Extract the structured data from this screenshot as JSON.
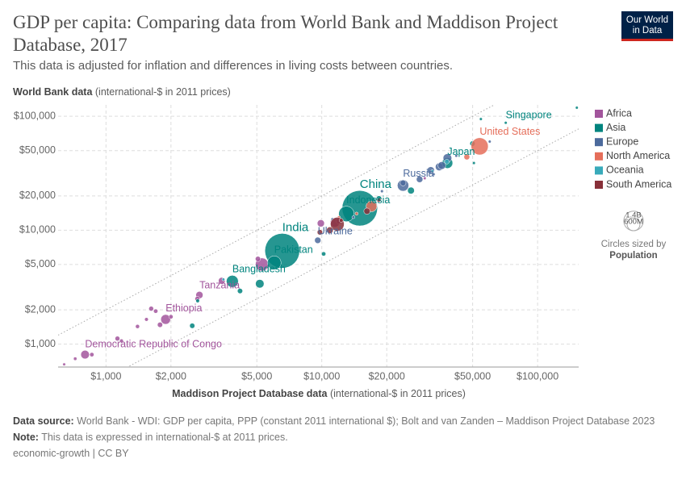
{
  "chart_data": {
    "type": "scatter",
    "title": "GDP per capita: Comparing data from World Bank and Maddison Project Database, 2017",
    "subtitle": "This data is adjusted for inflation and differences in living costs between countries.",
    "logo": [
      "Our World",
      "in Data"
    ],
    "x_label": {
      "name": "Maddison Project Database data",
      "unit": "(international-$ in 2011 prices)"
    },
    "y_label": {
      "name": "World Bank data",
      "unit": "(international-$ in 2011 prices)"
    },
    "log_x": true,
    "log_y": true,
    "grid": true,
    "xlim": [
      600,
      155000
    ],
    "ylim": [
      630,
      126000
    ],
    "xticks": [
      {
        "value": 1000,
        "label": "$1,000"
      },
      {
        "value": 2000,
        "label": "$2,000"
      },
      {
        "value": 5000,
        "label": "$5,000"
      },
      {
        "value": 10000,
        "label": "$10,000"
      },
      {
        "value": 20000,
        "label": "$20,000"
      },
      {
        "value": 50000,
        "label": "$50,000"
      },
      {
        "value": 100000,
        "label": "$100,000"
      }
    ],
    "yticks": [
      {
        "value": 1000,
        "label": "$1,000"
      },
      {
        "value": 2000,
        "label": "$2,000"
      },
      {
        "value": 5000,
        "label": "$5,000"
      },
      {
        "value": 10000,
        "label": "$10,000"
      },
      {
        "value": 20000,
        "label": "$20,000"
      },
      {
        "value": 50000,
        "label": "$50,000"
      },
      {
        "value": 100000,
        "label": "$100,000"
      }
    ],
    "reference_multipliers": [
      2,
      0.5
    ],
    "legend_position": "right",
    "series": [
      {
        "name": "Africa",
        "color": "#a2559c",
        "x": [
          1890,
          2710,
          800,
          5280,
          11500,
          9900,
          640,
          720,
          860,
          1130,
          1180,
          1400,
          1540,
          1620,
          1700,
          1780,
          2000,
          3440,
          5060,
          12000,
          30000,
          2650
        ],
        "values": [
          1650,
          2700,
          810,
          5000,
          11700,
          11500,
          665,
          745,
          810,
          1120,
          1070,
          1430,
          1650,
          2050,
          1950,
          1480,
          1740,
          3600,
          5600,
          12100,
          28600,
          2500
        ],
        "sizes": [
          105,
          57,
          81,
          191,
          97,
          57,
          5,
          12,
          20,
          25,
          15,
          18,
          15,
          25,
          20,
          30,
          20,
          50,
          30,
          40,
          2,
          26
        ],
        "labels": [
          "Ethiopia",
          "Tanzania",
          "Democratic Republic of Congo",
          null,
          null,
          null,
          null,
          null,
          null,
          null,
          null,
          null,
          null,
          null,
          null,
          null,
          null,
          null,
          null,
          null,
          null,
          null
        ]
      },
      {
        "name": "Asia",
        "color": "#00847e",
        "x": [
          15000,
          6560,
          13000,
          6020,
          3850,
          38200,
          71200,
          54600,
          152000,
          49900,
          50700,
          18400,
          10200,
          5160,
          4180,
          2510,
          2660,
          25900
        ],
        "values": [
          15600,
          6600,
          13900,
          5180,
          3560,
          38900,
          87700,
          94600,
          119000,
          57600,
          38900,
          19000,
          6200,
          3390,
          2930,
          1450,
          2400,
          22300
        ],
        "sizes": [
          1390,
          1340,
          264,
          207,
          160,
          127,
          5.7,
          3,
          2.7,
          30,
          4,
          32,
          20,
          80,
          30,
          30,
          15,
          51
        ],
        "labels": [
          "China",
          "India",
          "Indonesia",
          "Pakistan",
          "Bangladesh",
          "Japan",
          "Singapore",
          null,
          null,
          null,
          null,
          null,
          null,
          null,
          null,
          null,
          null,
          null
        ]
      },
      {
        "name": "Europe",
        "color": "#4c6a9c",
        "x": [
          23800,
          9580,
          38200,
          35000,
          36000,
          32000,
          28400,
          23800,
          60000,
          42000,
          11200,
          19000,
          14000,
          33000
        ],
        "values": [
          24700,
          8160,
          43000,
          36000,
          37000,
          33500,
          28000,
          26000,
          60000,
          45000,
          12500,
          22000,
          13000,
          31000
        ],
        "sizes": [
          144,
          44,
          82,
          65,
          66,
          60,
          46,
          38,
          5,
          8.5,
          7,
          10,
          7,
          9
        ],
        "labels": [
          "Russia",
          "Ukraine",
          null,
          null,
          null,
          null,
          null,
          null,
          null,
          null,
          null,
          null,
          null,
          null
        ]
      },
      {
        "name": "North America",
        "color": "#e56e5a",
        "x": [
          53900,
          17000,
          47000,
          12000,
          14500
        ],
        "values": [
          54500,
          16200,
          44000,
          13000,
          14000
        ],
        "sizes": [
          325,
          129,
          37,
          4,
          11
        ],
        "labels": [
          "United States",
          null,
          null,
          null,
          null
        ]
      },
      {
        "name": "Oceania",
        "color": "#38aaba",
        "x": [
          38000,
          32500,
          3500
        ],
        "values": [
          40000,
          33000,
          3700
        ],
        "sizes": [
          25,
          5,
          8
        ],
        "labels": [
          null,
          null,
          null
        ]
      },
      {
        "name": "South America",
        "color": "#883039",
        "x": [
          11800,
          16200,
          10900,
          18400,
          9800,
          12300
        ],
        "values": [
          11300,
          14700,
          10000,
          18400,
          9600,
          12200
        ],
        "sizes": [
          209,
          44,
          49,
          18,
          32,
          17
        ],
        "labels": [
          null,
          null,
          null,
          null,
          null,
          null
        ]
      }
    ],
    "size_legend": {
      "title": "Circles sized by",
      "variable": "Population",
      "items": [
        {
          "value": 1400,
          "label": "1.4B"
        },
        {
          "value": 600,
          "label": "600M"
        }
      ]
    },
    "source": {
      "label": "Data source:",
      "text": "World Bank - WDI: GDP per capita, PPP (constant 2011 international $); Bolt and van Zanden – Maddison Project Database 2023"
    },
    "note": {
      "label": "Note:",
      "text": "This data is expressed in international-$ at 2011 prices."
    },
    "license": "economic-growth | CC BY"
  }
}
